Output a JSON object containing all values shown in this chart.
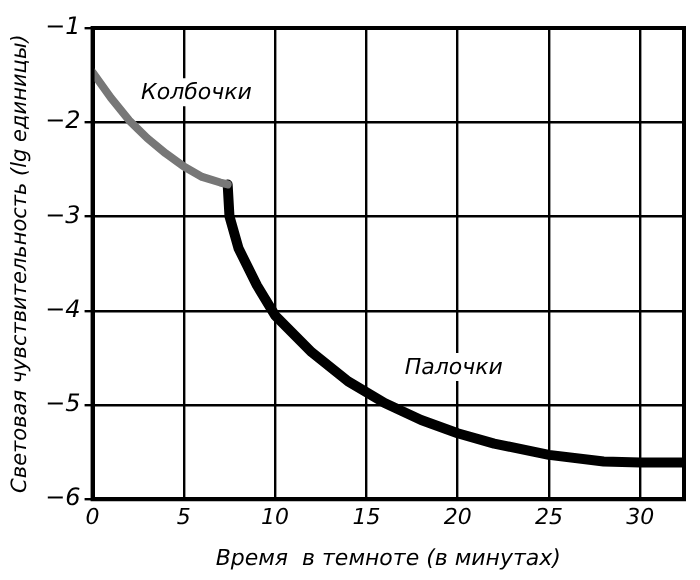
{
  "chart_data": {
    "type": "line",
    "xlabel": "Время  в темноте (в минутах)",
    "ylabel": "Световая чувствительность (lg единицы)",
    "xlim": [
      0,
      32.4
    ],
    "xticks": [
      0,
      5,
      10,
      15,
      20,
      25,
      30
    ],
    "ylim": [
      -6,
      -1
    ],
    "yticks": [
      -6,
      -5,
      -4,
      -3,
      -2,
      -1
    ],
    "grid": true,
    "legend": false,
    "marker": "none",
    "line_style": "solid",
    "series": [
      {
        "name": "Колбочки",
        "color": "#777777",
        "x": [
          0,
          1,
          2,
          3,
          4,
          5,
          6,
          7,
          7.4
        ],
        "values": [
          -1.47,
          -1.74,
          -1.98,
          -2.17,
          -2.33,
          -2.47,
          -2.58,
          -2.64,
          -2.66
        ]
      },
      {
        "name": "Палочки",
        "color": "#000000",
        "x": [
          7.4,
          7.5,
          8,
          9,
          10,
          12,
          14,
          16,
          18,
          20,
          22,
          25,
          28,
          30,
          32.4
        ],
        "values": [
          -2.66,
          -3.0,
          -3.34,
          -3.73,
          -4.05,
          -4.44,
          -4.75,
          -4.98,
          -5.16,
          -5.3,
          -5.41,
          -5.53,
          -5.6,
          -5.61,
          -5.61
        ]
      }
    ]
  }
}
